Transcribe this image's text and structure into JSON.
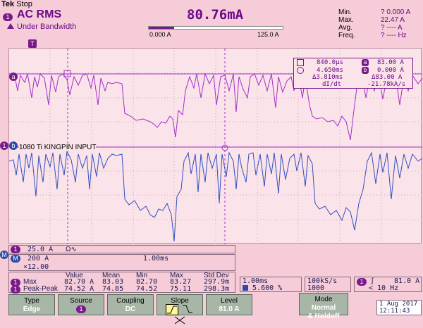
{
  "header": {
    "brand": "Tek",
    "state": "Stop",
    "measure_channel": "1",
    "measure_title": "AC RMS",
    "under_bandwidth": "Under Bandwidth",
    "value": "80.76mA",
    "scale_min": "0.000 A",
    "scale_max": "125.0 A"
  },
  "stats": {
    "min_label": "Min.",
    "min_value": "? 0.000 A",
    "max_label": "Max.",
    "max_value": "22.47 A",
    "avg_label": "Avg.",
    "avg_value": "? ---- A",
    "freq_label": "Freq.",
    "freq_value": "? ---- Hz"
  },
  "cursor_readout": {
    "t1": "840.0µs",
    "v1_badge": "a",
    "v1": "83.00 A",
    "t2": "4.650ms",
    "v2_badge": "b",
    "v2": "0.000 A",
    "dt": "Δ3.810ms",
    "dv": "Δ83.00 A",
    "didt_label": "dI/dt",
    "didt": "-21.78kA/s"
  },
  "markers": {
    "a": "a",
    "b": "b",
    "ch1": "1",
    "trig": "T"
  },
  "channel_label": "1080 Ti KINGPIN INPUT",
  "vertical": {
    "ch1_badge": "1",
    "ch1_scale": "25.0 A",
    "math_badge": "M",
    "math_scale": "200 A",
    "math_time": "1.00ms",
    "math_zoom": "×12.00"
  },
  "measure_table": {
    "headers": [
      "Value",
      "Mean",
      "Min",
      "Max",
      "Std Dev"
    ],
    "rows": [
      {
        "badge": "1",
        "name": "Max",
        "values": [
          "82.70 A",
          "83.03",
          "82.70",
          "83.27",
          "297.9m"
        ]
      },
      {
        "badge": "1",
        "name": "Peak-Peak",
        "values": [
          "74.52 A",
          "74.85",
          "74.52",
          "75.11",
          "298.3m"
        ]
      }
    ]
  },
  "timebase": {
    "scale": "1.00ms",
    "position": "5.600 %",
    "rate": "100kS/s",
    "points": "1000 points"
  },
  "trigger": {
    "badge": "1",
    "level": "81.0 A",
    "freq": "< 10 Hz"
  },
  "datetime": {
    "date": "1 Aug 2017",
    "time": "12:11:43"
  },
  "menu": {
    "type_label": "Type",
    "type_value": "Edge",
    "source_label": "Source",
    "source_value": "1",
    "coupling_label": "Coupling",
    "coupling_value": "DC",
    "slope_label": "Slope",
    "level_label": "Level",
    "level_value": "81.0 A",
    "mode_label": "Mode",
    "mode_value": "Normal",
    "mode_value2": "& Holdoff"
  },
  "colors": {
    "ch1": "#a030c8",
    "math": "#3050c0",
    "background": "#f6ccd8"
  }
}
